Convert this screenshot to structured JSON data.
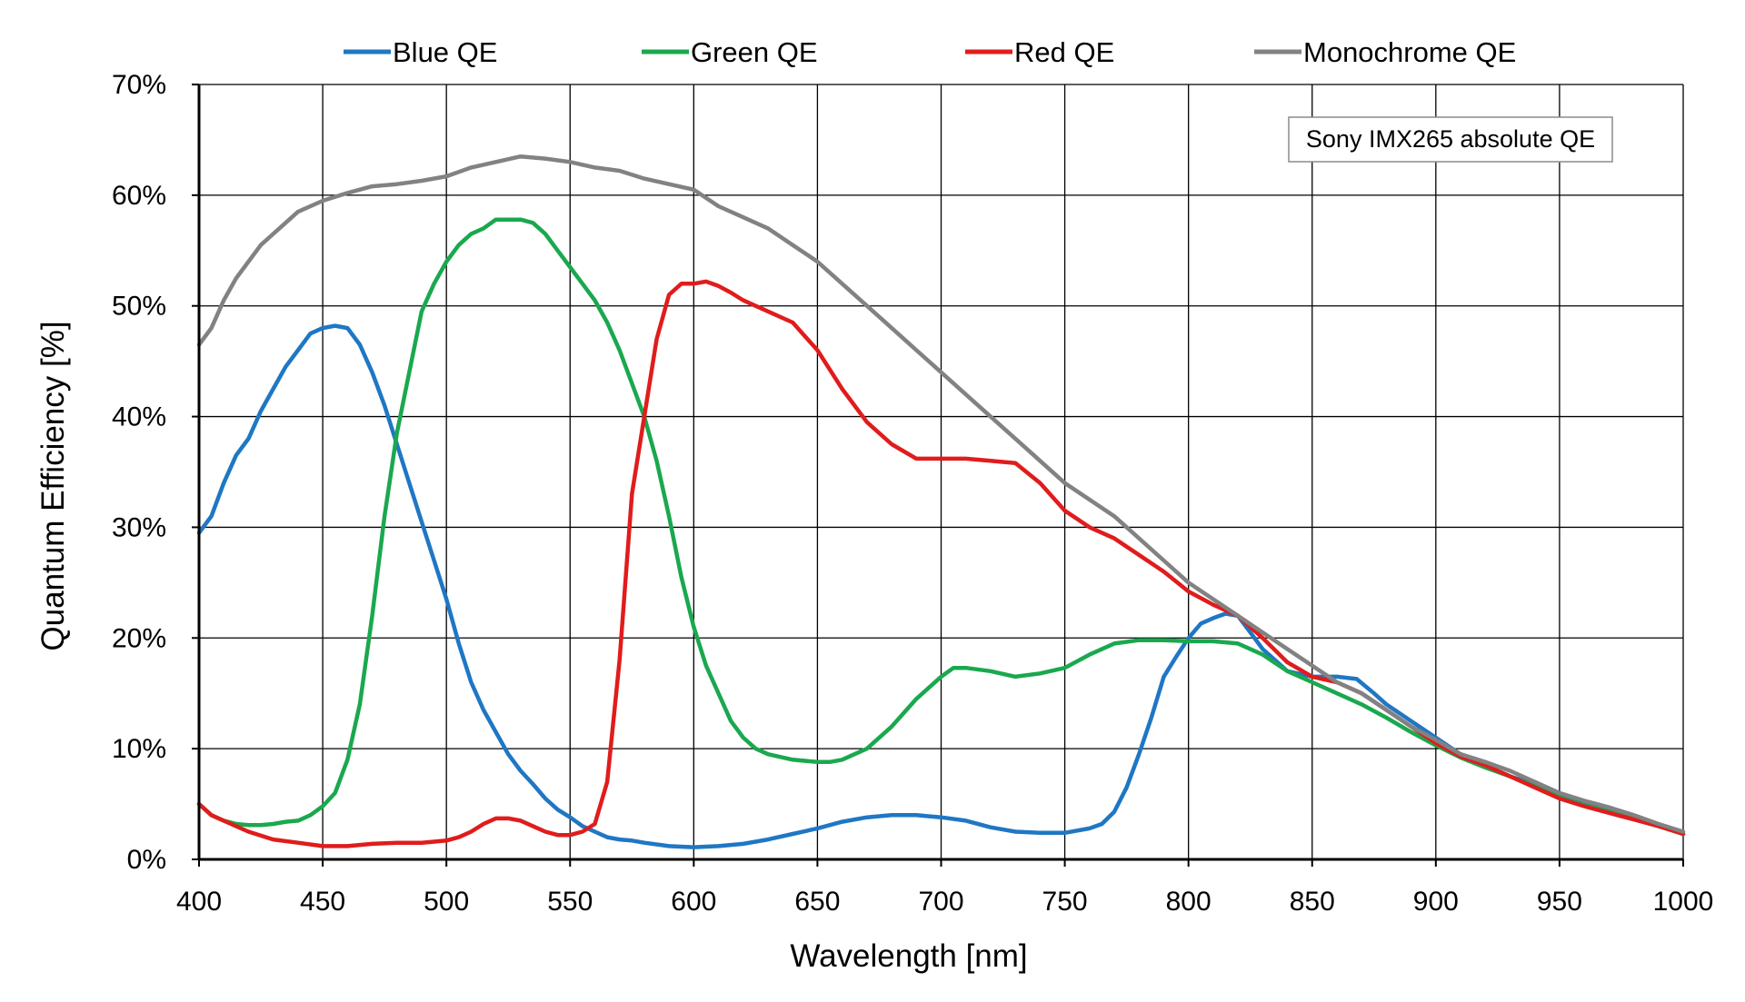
{
  "chart_data": {
    "type": "line",
    "annotation": "Sony IMX265 absolute QE",
    "xlabel": "Wavelength [nm]",
    "ylabel": "Quantum Efficiency [%]",
    "xlim": [
      400,
      1000
    ],
    "ylim": [
      0,
      70
    ],
    "x_ticks": [
      "400",
      "450",
      "500",
      "550",
      "600",
      "650",
      "700",
      "750",
      "800",
      "850",
      "900",
      "950",
      "1000"
    ],
    "y_ticks": [
      "0%",
      "10%",
      "20%",
      "30%",
      "40%",
      "50%",
      "60%",
      "70%"
    ],
    "grid": true,
    "legend_position": "top",
    "series": [
      {
        "name": "Blue QE",
        "color": "#1f77c4",
        "x": [
          400,
          405,
          410,
          415,
          420,
          425,
          430,
          435,
          440,
          445,
          450,
          455,
          460,
          465,
          470,
          475,
          480,
          485,
          490,
          495,
          500,
          505,
          510,
          515,
          520,
          525,
          530,
          535,
          540,
          545,
          550,
          555,
          560,
          565,
          570,
          575,
          580,
          590,
          600,
          610,
          620,
          630,
          640,
          650,
          660,
          670,
          680,
          690,
          700,
          710,
          720,
          730,
          740,
          750,
          760,
          765,
          770,
          775,
          780,
          785,
          790,
          795,
          800,
          805,
          810,
          815,
          820,
          825,
          830,
          840,
          850,
          860,
          868,
          875,
          880,
          890,
          900,
          910,
          920,
          930,
          940,
          950,
          960,
          970,
          980,
          990,
          1000
        ],
        "y": [
          29.5,
          31,
          34,
          36.5,
          38,
          40.5,
          42.5,
          44.5,
          46,
          47.5,
          48,
          48.2,
          48,
          46.5,
          44,
          41,
          37.5,
          34,
          30.5,
          27,
          23.5,
          19.5,
          16,
          13.5,
          11.5,
          9.5,
          8,
          6.8,
          5.5,
          4.5,
          3.8,
          3,
          2.5,
          2,
          1.8,
          1.7,
          1.5,
          1.2,
          1.1,
          1.2,
          1.4,
          1.8,
          2.3,
          2.8,
          3.4,
          3.8,
          4,
          4,
          3.8,
          3.5,
          2.9,
          2.5,
          2.4,
          2.4,
          2.8,
          3.2,
          4.3,
          6.5,
          9.5,
          12.8,
          16.5,
          18.3,
          20,
          21.3,
          21.8,
          22.2,
          22,
          20.5,
          19,
          17,
          16.5,
          16.5,
          16.3,
          15,
          14,
          12.5,
          11,
          9.5,
          8.5,
          7.5,
          6.8,
          5.8,
          5,
          4.5,
          3.8,
          3,
          2.3
        ]
      },
      {
        "name": "Green QE",
        "color": "#1aa84f",
        "x": [
          400,
          405,
          410,
          415,
          420,
          425,
          430,
          435,
          440,
          445,
          450,
          455,
          460,
          465,
          470,
          475,
          480,
          485,
          490,
          495,
          500,
          505,
          510,
          515,
          520,
          525,
          530,
          535,
          540,
          545,
          550,
          555,
          560,
          565,
          570,
          575,
          580,
          585,
          590,
          595,
          600,
          605,
          610,
          615,
          620,
          625,
          630,
          640,
          650,
          655,
          660,
          670,
          680,
          690,
          700,
          705,
          710,
          720,
          730,
          740,
          750,
          760,
          770,
          780,
          790,
          800,
          810,
          820,
          830,
          840,
          850,
          860,
          870,
          880,
          890,
          900,
          910,
          920,
          930,
          940,
          950,
          960,
          970,
          980,
          990,
          1000
        ],
        "y": [
          5,
          4,
          3.5,
          3.2,
          3.1,
          3.1,
          3.2,
          3.4,
          3.5,
          4,
          4.8,
          6,
          9,
          14,
          22,
          31,
          38.5,
          44,
          49.5,
          52,
          54,
          55.5,
          56.5,
          57,
          57.8,
          57.8,
          57.8,
          57.5,
          56.5,
          55,
          53.5,
          52,
          50.5,
          48.5,
          46,
          43,
          40,
          36,
          31,
          25.5,
          21,
          17.5,
          15,
          12.5,
          11,
          10,
          9.5,
          9,
          8.8,
          8.8,
          9,
          10,
          12,
          14.5,
          16.5,
          17.3,
          17.3,
          17,
          16.5,
          16.8,
          17.3,
          18.5,
          19.5,
          19.8,
          19.8,
          19.7,
          19.7,
          19.5,
          18.5,
          17,
          16,
          15,
          14,
          12.8,
          11.5,
          10.3,
          9.2,
          8.3,
          7.5,
          6.6,
          5.6,
          4.9,
          4.3,
          3.7,
          3,
          2.3
        ]
      },
      {
        "name": "Red QE",
        "color": "#e01c1c",
        "x": [
          400,
          405,
          410,
          420,
          430,
          440,
          450,
          460,
          470,
          480,
          490,
          500,
          505,
          510,
          515,
          520,
          525,
          530,
          535,
          540,
          545,
          550,
          555,
          560,
          565,
          570,
          575,
          580,
          585,
          590,
          595,
          600,
          605,
          610,
          615,
          620,
          630,
          640,
          650,
          660,
          670,
          680,
          690,
          700,
          710,
          720,
          730,
          740,
          750,
          760,
          770,
          780,
          790,
          800,
          810,
          820,
          830,
          840,
          850,
          860,
          870,
          880,
          890,
          900,
          910,
          920,
          930,
          940,
          950,
          960,
          970,
          980,
          990,
          1000
        ],
        "y": [
          5,
          4,
          3.5,
          2.5,
          1.8,
          1.5,
          1.2,
          1.2,
          1.4,
          1.5,
          1.5,
          1.7,
          2,
          2.5,
          3.2,
          3.7,
          3.7,
          3.5,
          3,
          2.5,
          2.2,
          2.2,
          2.5,
          3.2,
          7,
          18,
          33,
          40,
          47,
          51,
          52,
          52,
          52.2,
          51.8,
          51.2,
          50.5,
          49.5,
          48.5,
          46,
          42.5,
          39.5,
          37.5,
          36.2,
          36.2,
          36.2,
          36,
          35.8,
          34,
          31.5,
          30,
          29,
          27.5,
          26,
          24.2,
          23,
          22,
          20,
          17.8,
          16.5,
          16,
          15,
          13.5,
          12,
          10.5,
          9.3,
          8.5,
          7.5,
          6.5,
          5.5,
          4.8,
          4.2,
          3.6,
          3,
          2.3
        ]
      },
      {
        "name": "Monochrome QE",
        "color": "#828282",
        "x": [
          400,
          405,
          410,
          415,
          420,
          425,
          430,
          440,
          450,
          460,
          470,
          480,
          490,
          500,
          510,
          520,
          530,
          540,
          550,
          560,
          570,
          580,
          590,
          600,
          610,
          620,
          630,
          640,
          650,
          660,
          670,
          680,
          690,
          700,
          710,
          720,
          730,
          740,
          750,
          760,
          770,
          780,
          790,
          800,
          810,
          820,
          830,
          840,
          850,
          860,
          870,
          880,
          890,
          900,
          910,
          920,
          930,
          940,
          950,
          960,
          970,
          980,
          990,
          1000
        ],
        "y": [
          46.5,
          48,
          50.5,
          52.5,
          54,
          55.5,
          56.5,
          58.5,
          59.5,
          60.2,
          60.8,
          61,
          61.3,
          61.7,
          62.5,
          63,
          63.5,
          63.3,
          63,
          62.5,
          62.2,
          61.5,
          61,
          60.5,
          59,
          58,
          57,
          55.5,
          54,
          52,
          50,
          48,
          46,
          44,
          42,
          40,
          38,
          36,
          34,
          32.5,
          31,
          29,
          27,
          25,
          23.5,
          22,
          20.5,
          19,
          17.5,
          16,
          15,
          13.5,
          12,
          10.8,
          9.5,
          8.8,
          8,
          7,
          6,
          5.3,
          4.7,
          4,
          3.2,
          2.5
        ]
      }
    ]
  }
}
